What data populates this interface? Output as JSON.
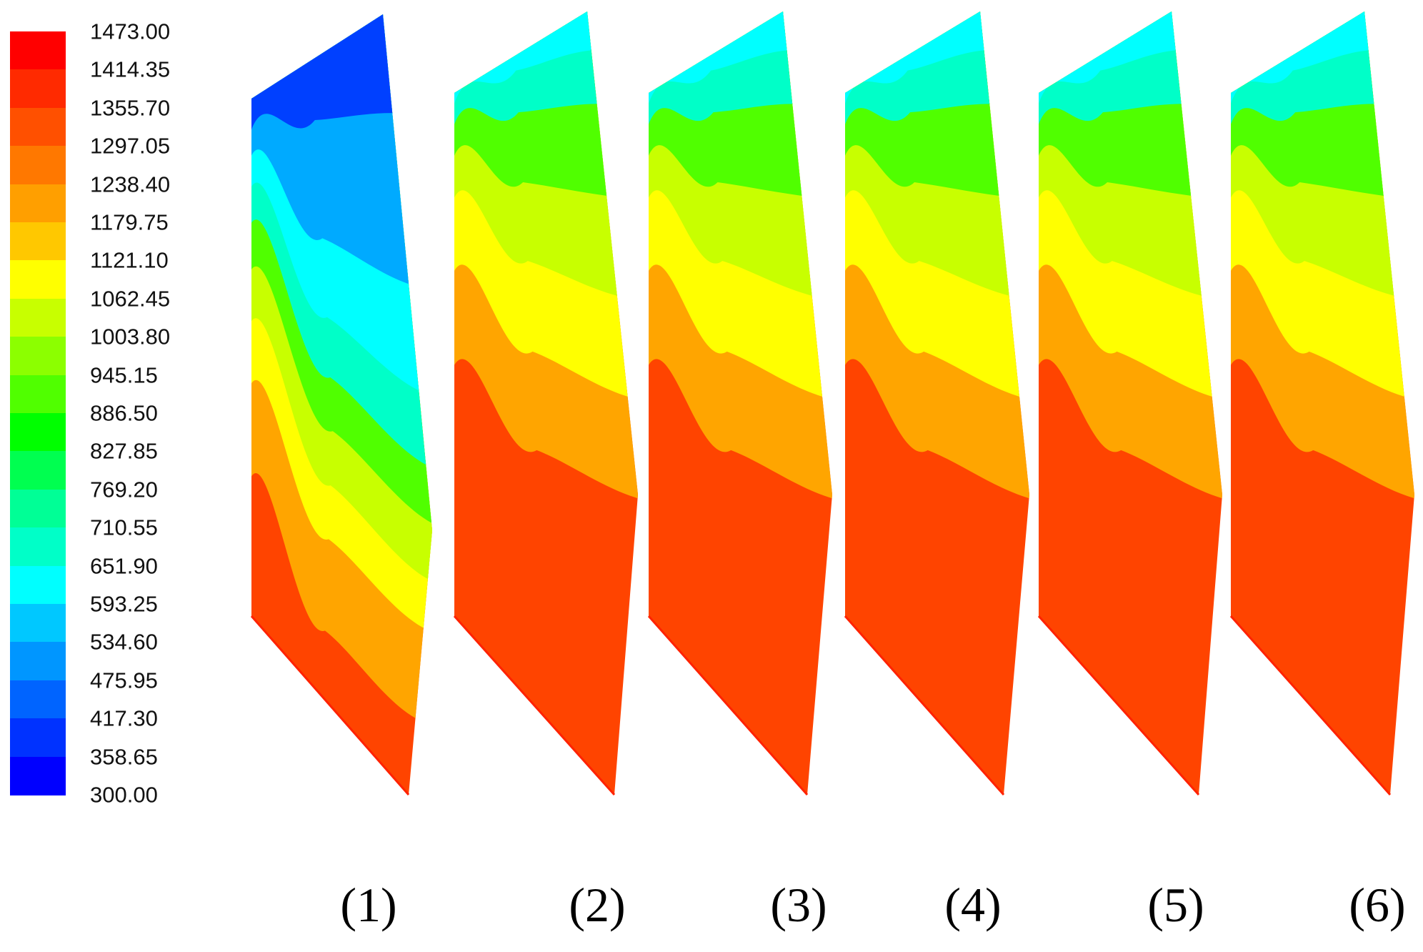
{
  "colormap": {
    "colors": [
      "#ff0000",
      "#ff2a00",
      "#ff5000",
      "#ff7800",
      "#ff9f00",
      "#ffc800",
      "#ffff00",
      "#c8ff00",
      "#8cff00",
      "#50ff00",
      "#00ff00",
      "#00ff50",
      "#00ff96",
      "#00ffc8",
      "#00ffff",
      "#00c8ff",
      "#0096ff",
      "#0064ff",
      "#0032ff",
      "#0000ff"
    ],
    "labels": [
      "1473.00",
      "1414.35",
      "1355.70",
      "1297.05",
      "1238.40",
      "1179.75",
      "1121.10",
      "1062.45",
      "1003.80",
      "945.15",
      "886.50",
      "827.85",
      "769.20",
      "710.55",
      "651.90",
      "593.25",
      "534.60",
      "475.95",
      "417.30",
      "358.65",
      "300.00"
    ]
  },
  "panels": [
    {
      "label": "(1)",
      "bands": [
        "#ff4400",
        "#ffa500",
        "#ffff00",
        "#c8ff00",
        "#50ff00",
        "#00ffc8",
        "#00ffff",
        "#00aaff",
        "#0040ff"
      ]
    },
    {
      "label": "(2)",
      "bands": [
        "#ff4400",
        "#ffa500",
        "#ffff00",
        "#c8ff00",
        "#50ff00",
        "#00ffc8",
        "#00ffff"
      ]
    },
    {
      "label": "(3)",
      "bands": [
        "#ff4400",
        "#ffa500",
        "#ffff00",
        "#c8ff00",
        "#50ff00",
        "#00ffc8",
        "#00ffff"
      ]
    },
    {
      "label": "(4)",
      "bands": [
        "#ff4400",
        "#ffa500",
        "#ffff00",
        "#c8ff00",
        "#50ff00",
        "#00ffc8",
        "#00ffff"
      ]
    },
    {
      "label": "(5)",
      "bands": [
        "#ff4400",
        "#ffa500",
        "#ffff00",
        "#c8ff00",
        "#50ff00",
        "#00ffc8",
        "#00ffff"
      ]
    },
    {
      "label": "(6)",
      "bands": [
        "#ff4400",
        "#ffa500",
        "#ffff00",
        "#c8ff00",
        "#50ff00",
        "#00ffc8",
        "#00ffff"
      ]
    }
  ]
}
